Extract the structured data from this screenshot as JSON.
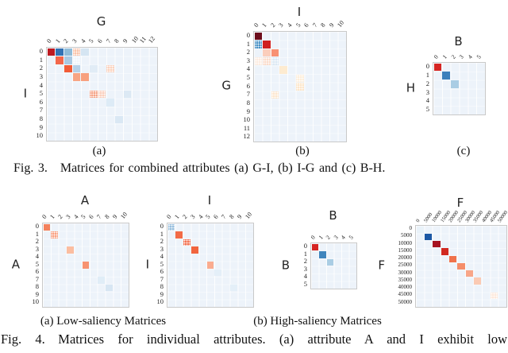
{
  "figure3": {
    "caption": "Fig. 3.  Matrices for combined attributes (a) G-I, (b) I-G and (c) B-H.",
    "sublabel_a": "(a)",
    "sublabel_b": "(b)",
    "sublabel_c": "(c)"
  },
  "figure4": {
    "caption": "Fig. 4.  Matrices for individual attributes. (a) attribute A and I exhibit low",
    "sublabel_a": "(a) Low-saliency Matrices",
    "sublabel_b": "(b) High-saliency Matrices"
  },
  "colors": {
    "page_background": "#ffffff",
    "plot_background": "#edf3fa",
    "plot_border": "#c9c9c9",
    "colormap": "red-blue diverging"
  },
  "chart_data": [
    {
      "id": "fig3a",
      "type": "heatmap",
      "x_title": "G",
      "y_title": "I",
      "col_labels": [
        "0",
        "1",
        "2",
        "3",
        "4",
        "5",
        "6",
        "7",
        "8",
        "9",
        "10",
        "11",
        "12"
      ],
      "row_labels": [
        "0",
        "1",
        "2",
        "3",
        "4",
        "5",
        "6",
        "7",
        "8",
        "9",
        "10"
      ],
      "cells": [
        {
          "r": 0,
          "c": 0,
          "color": "#bd1a21",
          "dotted": false
        },
        {
          "r": 0,
          "c": 1,
          "color": "#3272b4",
          "dotted": false
        },
        {
          "r": 0,
          "c": 2,
          "color": "#8fbcd9",
          "dotted": false
        },
        {
          "r": 0,
          "c": 3,
          "color": "#fac3a9",
          "dotted": true
        },
        {
          "r": 0,
          "c": 4,
          "color": "#d5e5f2",
          "dotted": false
        },
        {
          "r": 1,
          "c": 1,
          "color": "#f3674a",
          "dotted": false
        },
        {
          "r": 1,
          "c": 2,
          "color": "#aac9e2",
          "dotted": false
        },
        {
          "r": 1,
          "c": 3,
          "color": "#f0f5fb",
          "dotted": true
        },
        {
          "r": 2,
          "c": 2,
          "color": "#f25b37",
          "dotted": false
        },
        {
          "r": 2,
          "c": 3,
          "color": "#b6d1e8",
          "dotted": false
        },
        {
          "r": 2,
          "c": 5,
          "color": "#e1ecf6",
          "dotted": false
        },
        {
          "r": 2,
          "c": 7,
          "color": "#fbd2be",
          "dotted": true
        },
        {
          "r": 3,
          "c": 3,
          "color": "#f8a584",
          "dotted": false
        },
        {
          "r": 3,
          "c": 4,
          "color": "#f8a07e",
          "dotted": false
        },
        {
          "r": 5,
          "c": 5,
          "color": "#f5a486",
          "dotted": true
        },
        {
          "r": 5,
          "c": 6,
          "color": "#fbcfbb",
          "dotted": true
        },
        {
          "r": 5,
          "c": 9,
          "color": "#dce9f4",
          "dotted": false
        },
        {
          "r": 6,
          "c": 7,
          "color": "#ddebf6",
          "dotted": false
        },
        {
          "r": 8,
          "c": 8,
          "color": "#dae8f4",
          "dotted": false
        }
      ]
    },
    {
      "id": "fig3b",
      "type": "heatmap",
      "x_title": "I",
      "y_title": "G",
      "col_labels": [
        "0",
        "1",
        "2",
        "3",
        "4",
        "5",
        "6",
        "7",
        "8",
        "9",
        "10"
      ],
      "row_labels": [
        "0",
        "1",
        "2",
        "3",
        "4",
        "5",
        "6",
        "7",
        "8",
        "9",
        "10",
        "11",
        "12"
      ],
      "cells": [
        {
          "r": 0,
          "c": 0,
          "color": "#6d0e1c",
          "dotted": false
        },
        {
          "r": 1,
          "c": 0,
          "color": "#4a92c6",
          "dotted": true
        },
        {
          "r": 1,
          "c": 1,
          "color": "#d02020",
          "dotted": false
        },
        {
          "r": 2,
          "c": 1,
          "color": "#fbcebc",
          "dotted": false
        },
        {
          "r": 2,
          "c": 2,
          "color": "#f89173",
          "dotted": false
        },
        {
          "r": 3,
          "c": 0,
          "color": "#fdece1",
          "dotted": true
        },
        {
          "r": 3,
          "c": 1,
          "color": "#fbdccb",
          "dotted": true
        },
        {
          "r": 3,
          "c": 2,
          "color": "#dbe8f4",
          "dotted": true
        },
        {
          "r": 4,
          "c": 3,
          "color": "#fdebd0",
          "dotted": false
        },
        {
          "r": 5,
          "c": 5,
          "color": "#fdeeda",
          "dotted": true
        },
        {
          "r": 6,
          "c": 5,
          "color": "#fce6ca",
          "dotted": true
        },
        {
          "r": 7,
          "c": 2,
          "color": "#fce6ce",
          "dotted": true
        }
      ]
    },
    {
      "id": "fig3c",
      "type": "heatmap",
      "x_title": "B",
      "y_title": "H",
      "col_labels": [
        "0",
        "1",
        "2",
        "3",
        "4",
        "5"
      ],
      "row_labels": [
        "0",
        "1",
        "2",
        "3",
        "4",
        "5"
      ],
      "cells": [
        {
          "r": 0,
          "c": 0,
          "color": "#d62522",
          "dotted": false
        },
        {
          "r": 1,
          "c": 1,
          "color": "#3c80bc",
          "dotted": false
        },
        {
          "r": 2,
          "c": 2,
          "color": "#aacde4",
          "dotted": false
        }
      ]
    },
    {
      "id": "fig4A",
      "type": "heatmap",
      "x_title": "A",
      "y_title": "A",
      "col_labels": [
        "0",
        "1",
        "2",
        "3",
        "4",
        "5",
        "6",
        "7",
        "8",
        "9",
        "10"
      ],
      "row_labels": [
        "0",
        "1",
        "2",
        "3",
        "4",
        "5",
        "6",
        "7",
        "8",
        "9",
        "10"
      ],
      "cells": [
        {
          "r": 0,
          "c": 0,
          "color": "#f4825d",
          "dotted": false
        },
        {
          "r": 1,
          "c": 1,
          "color": "#f8a283",
          "dotted": true
        },
        {
          "r": 3,
          "c": 3,
          "color": "#fbbda0",
          "dotted": false
        },
        {
          "r": 5,
          "c": 5,
          "color": "#f79371",
          "dotted": false
        },
        {
          "r": 7,
          "c": 7,
          "color": "#e0edf7",
          "dotted": false
        },
        {
          "r": 8,
          "c": 8,
          "color": "#d7e6f3",
          "dotted": false
        }
      ]
    },
    {
      "id": "fig4I",
      "type": "heatmap",
      "x_title": "I",
      "y_title": "I",
      "col_labels": [
        "0",
        "1",
        "2",
        "3",
        "4",
        "5",
        "6",
        "7",
        "8",
        "9",
        "10"
      ],
      "row_labels": [
        "0",
        "1",
        "2",
        "3",
        "4",
        "5",
        "6",
        "7",
        "8",
        "9",
        "10"
      ],
      "cells": [
        {
          "r": 0,
          "c": 0,
          "color": "#97bedd",
          "dotted": true
        },
        {
          "r": 1,
          "c": 1,
          "color": "#f26b46",
          "dotted": false
        },
        {
          "r": 2,
          "c": 2,
          "color": "#f37151",
          "dotted": true
        },
        {
          "r": 3,
          "c": 3,
          "color": "#f1653e",
          "dotted": false
        },
        {
          "r": 5,
          "c": 5,
          "color": "#faac8f",
          "dotted": false
        },
        {
          "r": 6,
          "c": 6,
          "color": "#e4eff8",
          "dotted": false
        },
        {
          "r": 8,
          "c": 8,
          "color": "#e4eff8",
          "dotted": false
        }
      ]
    },
    {
      "id": "fig4B",
      "type": "heatmap",
      "x_title": "B",
      "y_title": "B",
      "col_labels": [
        "0",
        "1",
        "2",
        "3",
        "4",
        "5"
      ],
      "row_labels": [
        "0",
        "1",
        "2",
        "3",
        "4",
        "5"
      ],
      "cells": [
        {
          "r": 0,
          "c": 0,
          "color": "#d62522",
          "dotted": false
        },
        {
          "r": 1,
          "c": 1,
          "color": "#3f85bd",
          "dotted": false
        },
        {
          "r": 2,
          "c": 2,
          "color": "#aacde4",
          "dotted": false
        }
      ]
    },
    {
      "id": "fig4F",
      "type": "heatmap",
      "x_title": "F",
      "y_title": "F",
      "col_labels": [
        "0",
        "5000",
        "10000",
        "15000",
        "20000",
        "25000",
        "30000",
        "35000",
        "40000",
        "45000",
        "50000"
      ],
      "row_labels": [
        "0",
        "5000",
        "10000",
        "15000",
        "20000",
        "25000",
        "30000",
        "35000",
        "40000",
        "45000",
        "50000"
      ],
      "cells": [
        {
          "r": 0,
          "c": 0,
          "color": "#e9f2f9",
          "dotted": false
        },
        {
          "r": 1,
          "c": 1,
          "color": "#1c58a5",
          "dotted": false
        },
        {
          "r": 2,
          "c": 2,
          "color": "#a61320",
          "dotted": false
        },
        {
          "r": 3,
          "c": 3,
          "color": "#d12a21",
          "dotted": false
        },
        {
          "r": 4,
          "c": 4,
          "color": "#f0724b",
          "dotted": false
        },
        {
          "r": 5,
          "c": 5,
          "color": "#f58d69",
          "dotted": false
        },
        {
          "r": 6,
          "c": 6,
          "color": "#f8a688",
          "dotted": false
        },
        {
          "r": 7,
          "c": 7,
          "color": "#fbcab3",
          "dotted": false
        },
        {
          "r": 9,
          "c": 9,
          "color": "#fde8db",
          "dotted": true
        }
      ]
    }
  ]
}
